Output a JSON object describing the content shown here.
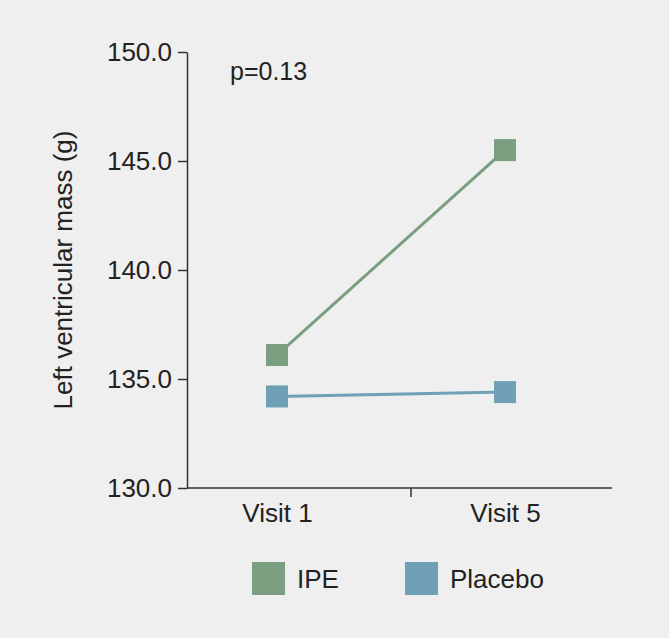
{
  "chart_data": {
    "type": "line",
    "annotation": "p=0.13",
    "y_label": "Left ventricular mass (g)",
    "categories": [
      "Visit 1",
      "Visit 5"
    ],
    "series": [
      {
        "name": "IPE",
        "color": "#7b9e80",
        "values": [
          136.1,
          145.5
        ],
        "marker": "square"
      },
      {
        "name": "Placebo",
        "color": "#6fa0b6",
        "values": [
          134.2,
          134.4
        ],
        "marker": "square"
      }
    ],
    "ylim": [
      130,
      150
    ],
    "yticks": [
      {
        "value": 130,
        "label": "130.0"
      },
      {
        "value": 135,
        "label": "135.0"
      },
      {
        "value": 140,
        "label": "140.0"
      },
      {
        "value": 145,
        "label": "145.0"
      },
      {
        "value": 150,
        "label": "150.0"
      }
    ],
    "legend": "bottom",
    "grid": false
  }
}
